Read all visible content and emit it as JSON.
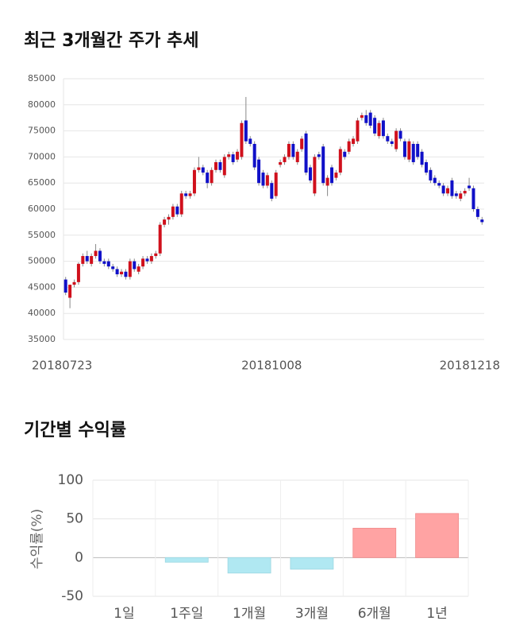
{
  "chart_data": [
    {
      "type": "candlestick",
      "title": "최근 3개월간 주가 추세",
      "categories": [
        "20180723",
        null,
        null,
        null,
        null,
        null,
        null,
        null,
        null,
        null,
        null,
        null,
        null,
        null,
        null,
        null,
        null,
        null,
        null,
        null,
        null,
        null,
        null,
        null,
        null,
        null,
        null,
        null,
        null,
        null,
        null,
        null,
        null,
        null,
        null,
        null,
        null,
        null,
        null,
        null,
        null,
        null,
        null,
        null,
        null,
        null,
        null,
        null,
        "20181008",
        null,
        null,
        null,
        null,
        null,
        null,
        null,
        null,
        null,
        null,
        null,
        null,
        null,
        null,
        null,
        null,
        null,
        null,
        null,
        null,
        null,
        null,
        null,
        null,
        null,
        null,
        null,
        null,
        null,
        null,
        null,
        null,
        null,
        null,
        null,
        null,
        null,
        null,
        null,
        null,
        null,
        null,
        null,
        null,
        null,
        "20181218",
        null,
        null,
        null
      ],
      "open": [
        46500,
        43000,
        45500,
        46000,
        49500,
        51000,
        49500,
        51000,
        52000,
        50000,
        50000,
        49000,
        48500,
        47500,
        48000,
        47000,
        50000,
        48000,
        49000,
        50500,
        50000,
        51000,
        51500,
        57000,
        58000,
        58500,
        60500,
        59000,
        63000,
        62500,
        63000,
        67500,
        68000,
        67000,
        65000,
        67500,
        69000,
        66500,
        70000,
        70500,
        69500,
        70000,
        77000,
        73500,
        72500,
        69500,
        67000,
        64500,
        65000,
        62500,
        68500,
        69000,
        70000,
        72500,
        69000,
        71500,
        74500,
        68000,
        63000,
        70500,
        72000,
        64500,
        68000,
        66000,
        67000,
        71000,
        71000,
        72500,
        73000,
        77500,
        78000,
        78500,
        77500,
        74000,
        77000,
        74000,
        73000,
        71500,
        75000,
        73000,
        69500,
        72500,
        72500,
        71000,
        69000,
        67500,
        66000,
        65000,
        64500,
        63000,
        65500,
        63000,
        62000,
        63000,
        64500,
        64000,
        60000,
        58000
      ],
      "high": [
        47000,
        45500,
        46500,
        49800,
        51500,
        52000,
        51500,
        53300,
        52500,
        50500,
        50500,
        49500,
        49000,
        48500,
        48500,
        50500,
        50500,
        49500,
        51000,
        51000,
        51500,
        52000,
        57500,
        58500,
        59000,
        61000,
        61000,
        63500,
        63500,
        63500,
        68000,
        70000,
        68500,
        67500,
        68000,
        69500,
        69500,
        70500,
        71000,
        71000,
        71500,
        77000,
        81500,
        74000,
        73000,
        70000,
        67500,
        67000,
        65500,
        67500,
        69500,
        70500,
        73000,
        73000,
        71500,
        74000,
        75000,
        68500,
        70500,
        71000,
        72500,
        66500,
        68500,
        67500,
        72000,
        71500,
        73500,
        74000,
        77500,
        78500,
        79000,
        79000,
        78000,
        77000,
        77500,
        74500,
        73500,
        75500,
        75500,
        73500,
        73500,
        73000,
        73000,
        71500,
        69500,
        68000,
        66500,
        65500,
        65000,
        64500,
        66000,
        63500,
        63500,
        64000,
        66000,
        64500,
        60500,
        58500
      ],
      "low": [
        43500,
        41000,
        45000,
        45500,
        49000,
        49500,
        49000,
        50500,
        49500,
        49000,
        48500,
        48000,
        47000,
        47000,
        46500,
        46500,
        48000,
        47500,
        48500,
        49500,
        49500,
        50500,
        51000,
        56500,
        57000,
        58000,
        58500,
        58500,
        62000,
        62000,
        62500,
        67000,
        66500,
        64000,
        64500,
        67000,
        67000,
        66000,
        69500,
        68500,
        69000,
        69500,
        72500,
        72000,
        67500,
        64500,
        64000,
        64000,
        61500,
        62000,
        68000,
        68500,
        69500,
        69500,
        68500,
        71000,
        66500,
        65000,
        62500,
        69500,
        64500,
        62500,
        64500,
        65500,
        66500,
        69500,
        70500,
        72000,
        72500,
        77000,
        76000,
        75500,
        74000,
        73500,
        73500,
        72500,
        72000,
        71000,
        73000,
        69500,
        69000,
        68500,
        69500,
        68000,
        66500,
        65000,
        64500,
        64000,
        62500,
        62500,
        62000,
        62000,
        61500,
        62500,
        63500,
        59500,
        58000,
        57000
      ],
      "close": [
        44000,
        45500,
        46000,
        49500,
        51000,
        50000,
        51000,
        52000,
        50000,
        49500,
        49000,
        48500,
        47500,
        48000,
        47000,
        50000,
        48500,
        49000,
        50500,
        50000,
        51000,
        51500,
        57000,
        58000,
        58500,
        60500,
        59000,
        63000,
        62500,
        63000,
        67500,
        68000,
        67000,
        65000,
        67500,
        69000,
        67500,
        70000,
        70500,
        69000,
        71000,
        76500,
        73000,
        72500,
        68000,
        65000,
        64500,
        66500,
        62000,
        67000,
        69000,
        70000,
        72500,
        70000,
        71000,
        73500,
        67000,
        65500,
        70000,
        70000,
        65000,
        66000,
        65000,
        67000,
        71500,
        70000,
        73000,
        73500,
        77000,
        78000,
        76500,
        76000,
        74500,
        76500,
        74000,
        73000,
        72500,
        75000,
        73500,
        70000,
        73000,
        69000,
        70000,
        68500,
        67000,
        65500,
        65000,
        64500,
        63000,
        64000,
        62500,
        62500,
        63000,
        63500,
        64000,
        60000,
        58500,
        57500
      ],
      "up_color": "#d0101c",
      "down_color": "#1010c8",
      "ylim": [
        35000,
        85000
      ],
      "yticks": [
        35000,
        40000,
        45000,
        50000,
        55000,
        60000,
        65000,
        70000,
        75000,
        80000,
        85000
      ],
      "grid": true
    },
    {
      "type": "bar",
      "title": "기간별 수익률",
      "y_label": "수익률(%)",
      "categories": [
        "1일",
        "1주일",
        "1개월",
        "3개월",
        "6개월",
        "1년"
      ],
      "values": [
        0,
        -6,
        -20,
        -15,
        38,
        57
      ],
      "positive_color": "#ffa3a3",
      "negative_color": "#b0e8f2",
      "ylim": [
        -50,
        100
      ],
      "yticks": [
        -50,
        0,
        50,
        100
      ],
      "grid": true
    }
  ]
}
